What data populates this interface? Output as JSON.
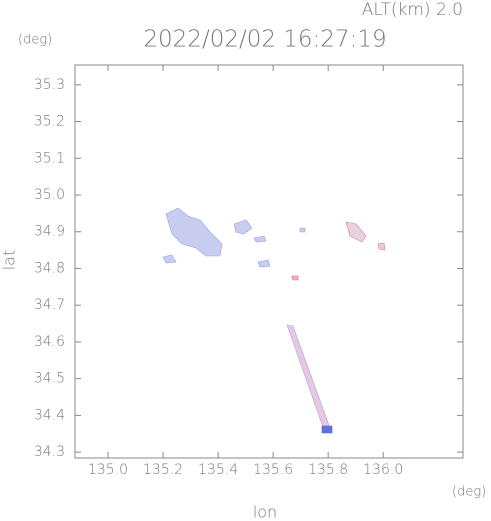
{
  "chart_data": {
    "type": "map",
    "title": "2022/02/02 16:27:19",
    "annotation": "ALT(km) 2.0",
    "x_label": "lon",
    "y_label": "lat",
    "x_unit": "(deg)",
    "y_unit": "(deg)",
    "xlim": [
      134.88,
      136.29
    ],
    "ylim": [
      34.284,
      35.354
    ],
    "xticks": [
      {
        "value": 135,
        "label": "135.0"
      },
      135.2,
      135.4,
      135.6,
      135.8,
      {
        "value": 136,
        "label": "136.0"
      }
    ],
    "yticks": [
      34.3,
      34.4,
      34.5,
      34.6,
      34.7,
      34.8,
      34.9,
      {
        "value": 35,
        "label": "35.0"
      },
      35.1,
      35.2,
      35.3
    ]
  }
}
